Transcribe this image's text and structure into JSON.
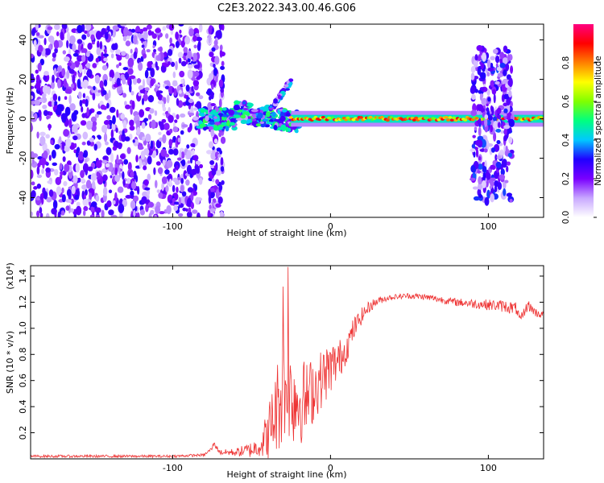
{
  "title": "C2E3.2022.343.00.46.G06",
  "chart_data": [
    {
      "type": "heatmap",
      "title": "C2E3.2022.343.00.46.G06",
      "xlabel": "Height of straight line (km)",
      "ylabel": "Frequency (Hz)",
      "xlim": [
        -190,
        135
      ],
      "ylim": [
        -50,
        48
      ],
      "x_ticks": [
        -100,
        0,
        100
      ],
      "y_ticks": [
        -40,
        -20,
        0,
        20,
        40
      ],
      "colorbar": {
        "label": "Normalized spectral amplitude",
        "range": [
          0,
          1
        ],
        "ticks": [
          0.0,
          0.2,
          0.4,
          0.6,
          0.8
        ],
        "colormap": [
          "#ffffff",
          "#c8a8ff",
          "#7a00ff",
          "#2000ff",
          "#00c8ff",
          "#00ff80",
          "#80ff00",
          "#ffff00",
          "#ff8000",
          "#ff0000",
          "#ff0080"
        ]
      },
      "regions": [
        {
          "name": "noise",
          "x": [
            -190,
            -82
          ],
          "freq_spread": [
            -50,
            48
          ],
          "amplitude": 0.25
        },
        {
          "name": "noise-band",
          "x": [
            -77,
            -68
          ],
          "freq_spread": [
            -50,
            48
          ],
          "amplitude": 0.25
        },
        {
          "name": "signal-onset",
          "x": [
            -83,
            -20
          ],
          "freq_center": [
            -4,
            5
          ],
          "amplitude": 0.45
        },
        {
          "name": "rising-branch",
          "x": [
            -38,
            -25
          ],
          "freq": [
            5,
            19
          ],
          "amplitude": 0.35
        },
        {
          "name": "tone",
          "x": [
            -25,
            135
          ],
          "freq": 0,
          "amplitude": 0.85
        },
        {
          "name": "disturbance",
          "x": [
            90,
            115
          ],
          "freq_spread": [
            -42,
            36
          ],
          "amplitude": 0.3
        }
      ]
    },
    {
      "type": "line",
      "xlabel": "Height of straight line (km)",
      "ylabel": "SNR (10 * v/v)",
      "y_multiplier": "(x10⁴)",
      "xlim": [
        -190,
        135
      ],
      "ylim": [
        0,
        1.48
      ],
      "x_ticks": [
        -100,
        0,
        100
      ],
      "y_ticks": [
        0.2,
        0.4,
        0.6,
        0.8,
        1.0,
        1.2,
        1.4
      ],
      "color": "#ee3333",
      "envelope": {
        "x": [
          -190,
          -100,
          -80,
          -75,
          -74,
          -70,
          -60,
          -50,
          -45,
          -40,
          -35,
          -30,
          -25,
          -20,
          -15,
          -10,
          -5,
          0,
          5,
          10,
          15,
          20,
          25,
          30,
          35,
          40,
          50,
          60,
          70,
          80,
          90,
          100,
          110,
          118,
          120,
          125,
          130,
          135
        ],
        "y": [
          0.02,
          0.02,
          0.03,
          0.08,
          0.12,
          0.05,
          0.05,
          0.07,
          0.1,
          0.18,
          0.35,
          0.55,
          0.5,
          0.45,
          0.45,
          0.55,
          0.62,
          0.7,
          0.75,
          0.85,
          1.0,
          1.1,
          1.17,
          1.21,
          1.23,
          1.24,
          1.25,
          1.24,
          1.22,
          1.2,
          1.19,
          1.18,
          1.17,
          1.15,
          1.05,
          1.18,
          1.12,
          1.1
        ]
      },
      "noise": {
        "x": [
          -190,
          -80,
          -60,
          -45,
          -38,
          -30,
          -20,
          -10,
          0,
          10,
          20,
          30,
          40,
          80,
          115,
          135
        ],
        "amplitude": [
          0.01,
          0.01,
          0.03,
          0.08,
          0.25,
          0.45,
          0.35,
          0.25,
          0.2,
          0.12,
          0.06,
          0.03,
          0.02,
          0.03,
          0.05,
          0.03
        ]
      },
      "peaks": [
        {
          "x": -27,
          "y": 1.47
        },
        {
          "x": -30,
          "y": 1.32
        }
      ]
    }
  ]
}
